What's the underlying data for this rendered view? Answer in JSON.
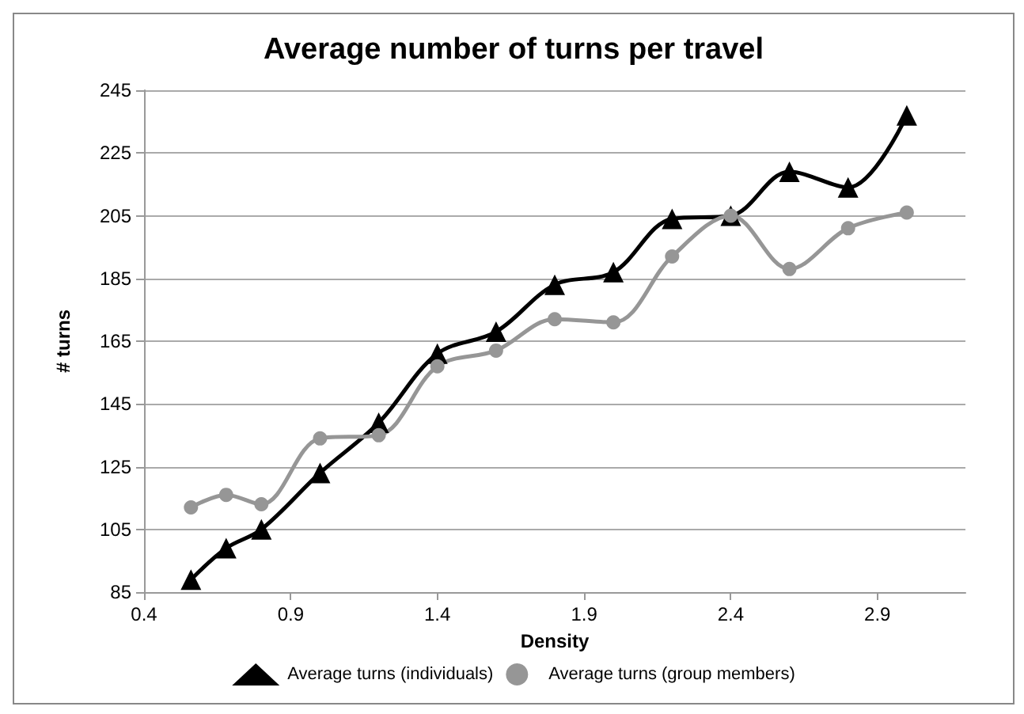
{
  "chart_data": {
    "type": "line",
    "title": "Average number of turns per travel",
    "xlabel": "Density",
    "ylabel": "# turns",
    "x": [
      0.56,
      0.68,
      0.8,
      1.0,
      1.2,
      1.4,
      1.6,
      1.8,
      2.0,
      2.2,
      2.4,
      2.6,
      2.8,
      3.0
    ],
    "series": [
      {
        "name": "Average turns (individuals)",
        "color": "#000000",
        "marker": "triangle",
        "values": [
          89,
          99,
          105,
          123,
          139,
          161,
          168,
          183,
          187,
          204,
          205,
          219,
          214,
          237
        ]
      },
      {
        "name": "Average turns (group members)",
        "color": "#969696",
        "marker": "circle",
        "values": [
          112,
          116,
          113,
          134,
          135,
          157,
          162,
          172,
          171,
          192,
          205,
          188,
          201,
          206
        ]
      }
    ],
    "xlim": [
      0.4,
      3.2
    ],
    "xticks": [
      0.4,
      0.9,
      1.4,
      1.9,
      2.4,
      2.9
    ],
    "ylim": [
      85,
      245
    ],
    "yticks": [
      85,
      105,
      125,
      145,
      165,
      185,
      205,
      225,
      245
    ],
    "grid": "y",
    "legend": "bottom",
    "line_style": "solid"
  }
}
